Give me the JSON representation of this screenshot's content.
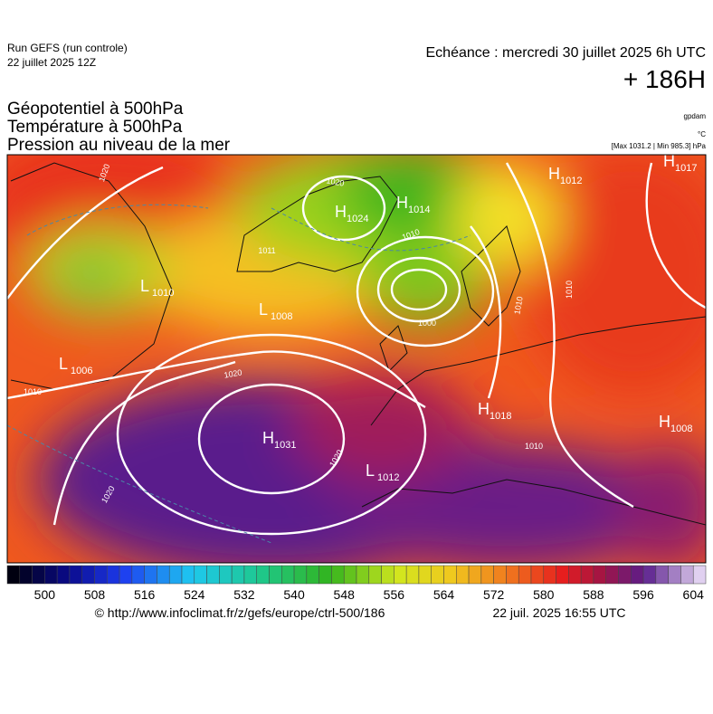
{
  "header": {
    "run": "Run GEFS (run controle)",
    "run_date": "22 juillet 2025 12Z",
    "echeance": "Echéance : mercredi 30 juillet 2025 6h UTC",
    "lead": "+ 186H",
    "titles": [
      "Géopotentiel à 500hPa",
      "Température à 500hPa",
      "Pression au niveau de la mer"
    ],
    "units": [
      "gpdam",
      "°C",
      "[Max 1031.2 | Min 985.3] hPa"
    ]
  },
  "map": {
    "centers": [
      {
        "letter": "H",
        "value": "1024"
      },
      {
        "letter": "H",
        "value": "1014"
      },
      {
        "letter": "H",
        "value": "1012"
      },
      {
        "letter": "H",
        "value": "1017"
      },
      {
        "letter": "L",
        "value": "1006"
      },
      {
        "letter": "L",
        "value": "1008"
      },
      {
        "letter": "L",
        "value": "1010"
      },
      {
        "letter": "H",
        "value": "1031"
      },
      {
        "letter": "L",
        "value": "1012"
      },
      {
        "letter": "H",
        "value": "1018"
      },
      {
        "letter": "H",
        "value": "1008"
      }
    ],
    "contour_labels": [
      "1020",
      "1010",
      "1020",
      "1020",
      "1020",
      "1020",
      "1011",
      "1010",
      "1000",
      "1010",
      "1010",
      "1010"
    ]
  },
  "colorbar": {
    "labels": [
      500,
      508,
      516,
      524,
      532,
      540,
      548,
      556,
      564,
      572,
      580,
      588,
      596,
      604
    ]
  },
  "footer": {
    "url": "© http://www.infoclimat.fr/z/gefs/europe/ctrl-500/186",
    "date": "22 juil. 2025 16:55 UTC"
  }
}
